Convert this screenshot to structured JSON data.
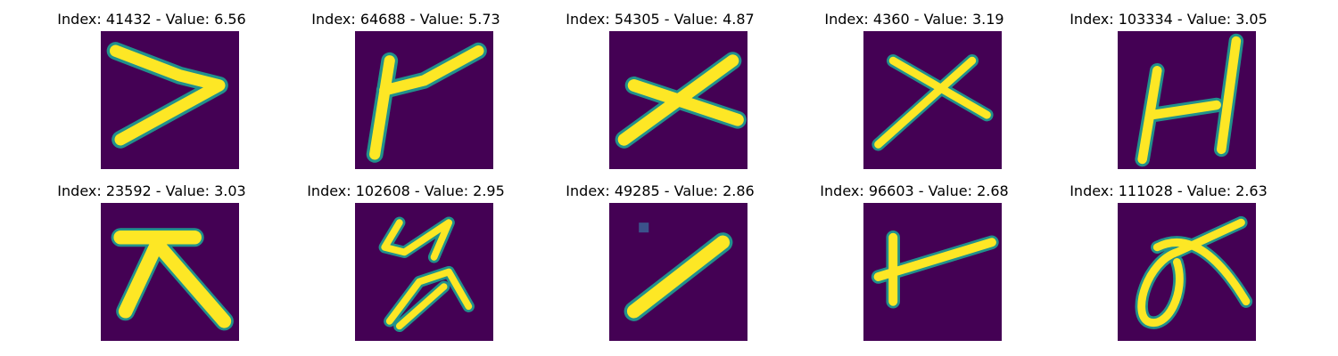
{
  "figure": {
    "colormap": "viridis",
    "background_color": "#440154",
    "stroke_color": "#fde725",
    "edge_color": "#21918c",
    "panels": [
      {
        "index": "41432",
        "value": "6.56",
        "title": "Index: 41432 - Value: 6.56",
        "glyph": "seven-like-stroke"
      },
      {
        "index": "64688",
        "value": "5.73",
        "title": "Index: 64688 - Value: 5.73",
        "glyph": "vertical-with-diagonal"
      },
      {
        "index": "54305",
        "value": "4.87",
        "title": "Index: 54305 - Value: 4.87",
        "glyph": "cross-x"
      },
      {
        "index": "4360",
        "value": "3.19",
        "title": "Index: 4360 - Value: 3.19",
        "glyph": "thin-cross-x"
      },
      {
        "index": "103334",
        "value": "3.05",
        "title": "Index: 103334 - Value: 3.05",
        "glyph": "h-shape"
      },
      {
        "index": "23592",
        "value": "3.03",
        "title": "Index: 23592 - Value: 3.03",
        "glyph": "big-kanji-like"
      },
      {
        "index": "102608",
        "value": "2.95",
        "title": "Index: 102608 - Value: 2.95",
        "glyph": "zigzag-scribble"
      },
      {
        "index": "49285",
        "value": "2.86",
        "title": "Index: 49285 - Value: 2.86",
        "glyph": "diagonal-blob"
      },
      {
        "index": "96603",
        "value": "2.68",
        "title": "Index: 96603 - Value: 2.68",
        "glyph": "short-cross"
      },
      {
        "index": "111028",
        "value": "2.63",
        "title": "Index: 111028 - Value: 2.63",
        "glyph": "loop-scribble"
      }
    ]
  }
}
